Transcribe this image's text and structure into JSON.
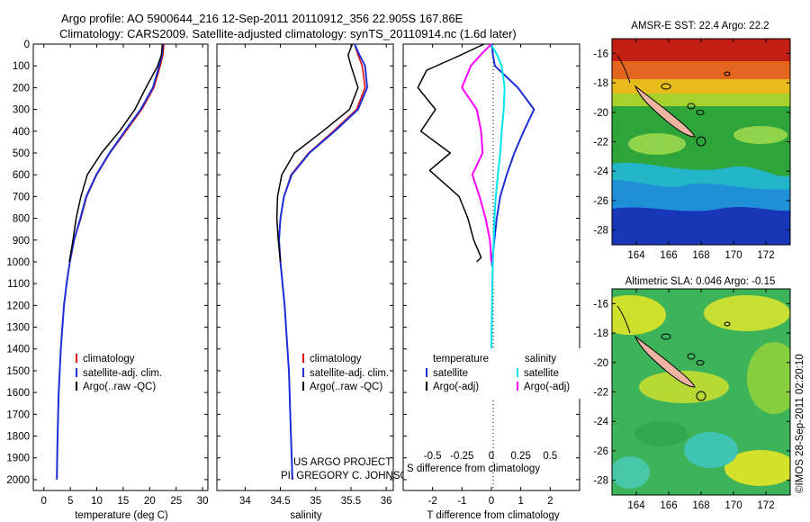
{
  "header": {
    "title_line1": "Argo profile: AO 5900644_216 12-Sep-2011 20110912_356 22.905S 167.86E",
    "title_line2": "Climatology: CARS2009. Satellite-adjusted climatology: synTS_20110914.nc (1.6d later)"
  },
  "colors": {
    "climatology": "#e00000",
    "satellite": "#1c2fd8",
    "argo": "#000000",
    "salinity_satellite": "#00e5ee",
    "salinity_argo": "#ff00ff"
  },
  "panels": {
    "temperature": {
      "xlabel": "temperature (deg C)",
      "legend": [
        "climatology",
        "satellite-adj. clim.",
        "Argo(..raw -QC)"
      ]
    },
    "salinity": {
      "xlabel": "salinity",
      "legend": [
        "climatology",
        "satellite-adj. clim.",
        "Argo(..raw -QC)"
      ],
      "credit_line1": "US ARGO PROJECT",
      "credit_line2": "PI: GREGORY C. JOHNSON"
    },
    "difference": {
      "xlabel": "T difference from climatology",
      "s_label": "S difference from climatology",
      "legend_left_title": "temperature",
      "legend_left": [
        "satellite",
        "Argo(-adj)"
      ],
      "legend_right_title": "salinity",
      "legend_right": [
        "satellite",
        "Argo(-adj)"
      ]
    }
  },
  "maps": {
    "sst": {
      "title": "AMSR-E SST: 22.4 Argo: 22.2"
    },
    "sla": {
      "title": "Altimetric SLA: 0.046 Argo: -0.15"
    },
    "lat_ticks": [
      "-16",
      "-18",
      "-20",
      "-22",
      "-24",
      "-26",
      "-28"
    ],
    "lon_ticks": [
      "164",
      "166",
      "168",
      "170",
      "172"
    ]
  },
  "timestamp": "©IMOS 28-Sep-2011 02:20:10",
  "chart_data": [
    {
      "type": "line",
      "title": "temperature profile",
      "xlabel": "temperature (deg C)",
      "ylabel": "depth",
      "xlim": [
        -2,
        31
      ],
      "ylim": [
        2050,
        0
      ],
      "xticks": [
        0,
        5,
        10,
        15,
        20,
        25,
        30
      ],
      "yticks": [
        0,
        100,
        200,
        300,
        400,
        500,
        600,
        700,
        800,
        900,
        1000,
        1100,
        1200,
        1300,
        1400,
        1500,
        1600,
        1700,
        1800,
        1900,
        2000
      ],
      "series": [
        {
          "name": "climatology",
          "color": "#e00000",
          "width": 1.5,
          "x": [
            22.7,
            22.5,
            22.0,
            20.8,
            18.5,
            15.5,
            12.5,
            10.0,
            8.1,
            7.0,
            5.7,
            4.9,
            4.3,
            3.8,
            3.5,
            3.2,
            3.0,
            2.8,
            2.7,
            2.6,
            2.5,
            2.45
          ],
          "y": [
            0,
            50,
            100,
            200,
            300,
            400,
            500,
            600,
            700,
            800,
            900,
            1000,
            1100,
            1200,
            1300,
            1400,
            1500,
            1600,
            1700,
            1800,
            1900,
            2000
          ]
        },
        {
          "name": "satellite-adj. clim.",
          "color": "#1c2fd8",
          "width": 2,
          "x": [
            22.5,
            22.3,
            21.8,
            20.6,
            18.3,
            15.3,
            12.4,
            9.9,
            8.0,
            6.9,
            5.7,
            4.9,
            4.3,
            3.8,
            3.5,
            3.2,
            3.0,
            2.8,
            2.7,
            2.6,
            2.5,
            2.45
          ],
          "y": [
            0,
            50,
            100,
            200,
            300,
            400,
            500,
            600,
            700,
            800,
            900,
            1000,
            1100,
            1200,
            1300,
            1400,
            1500,
            1600,
            1700,
            1800,
            1900,
            2000
          ]
        },
        {
          "name": "Argo(..raw -QC)",
          "color": "#000000",
          "width": 1.5,
          "x": [
            22.4,
            22.2,
            21.5,
            19.3,
            17.2,
            14.3,
            10.9,
            8.2,
            7.0,
            6.1,
            5.5,
            4.8
          ],
          "y": [
            0,
            50,
            100,
            200,
            300,
            400,
            500,
            600,
            700,
            800,
            900,
            1000
          ]
        }
      ]
    },
    {
      "type": "line",
      "title": "salinity profile",
      "xlabel": "salinity",
      "ylabel": "depth",
      "xlim": [
        33.6,
        36.1
      ],
      "ylim": [
        2050,
        0
      ],
      "xticks": [
        34,
        34.5,
        35,
        35.5,
        36
      ],
      "series": [
        {
          "name": "climatology",
          "color": "#e00000",
          "width": 1.5,
          "x": [
            35.55,
            35.6,
            35.66,
            35.7,
            35.58,
            35.25,
            34.9,
            34.65,
            34.55,
            34.5,
            34.48,
            34.5,
            34.53,
            34.56,
            34.58,
            34.6,
            34.62,
            34.63,
            34.64,
            34.65,
            34.66,
            34.67
          ],
          "y": [
            0,
            50,
            100,
            200,
            300,
            400,
            500,
            600,
            700,
            800,
            900,
            1000,
            1100,
            1200,
            1300,
            1400,
            1500,
            1600,
            1700,
            1800,
            1900,
            2000
          ]
        },
        {
          "name": "satellite-adj. clim.",
          "color": "#1c2fd8",
          "width": 2,
          "x": [
            35.55,
            35.62,
            35.7,
            35.73,
            35.6,
            35.27,
            34.91,
            34.66,
            34.55,
            34.5,
            34.48,
            34.5,
            34.53,
            34.56,
            34.58,
            34.6,
            34.62,
            34.63,
            34.64,
            34.65,
            34.66,
            34.67
          ],
          "y": [
            0,
            50,
            100,
            200,
            300,
            400,
            500,
            600,
            700,
            800,
            900,
            1000,
            1100,
            1200,
            1300,
            1400,
            1500,
            1600,
            1700,
            1800,
            1900,
            2000
          ]
        },
        {
          "name": "Argo(..raw -QC)",
          "color": "#000000",
          "width": 1.5,
          "x": [
            35.52,
            35.46,
            35.5,
            35.6,
            35.48,
            35.1,
            34.7,
            34.52,
            34.46,
            34.45,
            34.47,
            34.5
          ],
          "y": [
            0,
            50,
            100,
            200,
            300,
            400,
            500,
            600,
            700,
            800,
            900,
            1000
          ]
        }
      ]
    },
    {
      "type": "line",
      "title": "difference from climatology",
      "xlabel": "T difference from climatology",
      "s_label": "S difference from climatology",
      "ylabel": "depth",
      "xlim": [
        -3,
        3
      ],
      "ylim": [
        2050,
        0
      ],
      "xticks": [
        -2,
        -1,
        0,
        1,
        2
      ],
      "s_ticks": [
        "-0.5",
        "-0.25",
        "0",
        "0.25",
        "0.5"
      ],
      "s_tick_positions": [
        -2,
        -1,
        0,
        1,
        2
      ],
      "series": [
        {
          "name": "temperature satellite",
          "color": "#1c2fd8",
          "width": 2,
          "x": [
            0.02,
            0.05,
            0.12,
            0.9,
            1.45,
            1.1,
            0.78,
            0.52,
            0.3,
            0.18,
            0.1,
            0.06,
            0.02,
            0.02
          ],
          "y": [
            0,
            50,
            100,
            200,
            300,
            400,
            500,
            600,
            700,
            800,
            900,
            950,
            1000,
            1020
          ]
        },
        {
          "name": "temperature Argo(-adj)",
          "color": "#000000",
          "width": 1.5,
          "x": [
            -0.25,
            -1.2,
            -2.2,
            -2.5,
            -1.9,
            -2.4,
            -1.4,
            -2.1,
            -1.1,
            -0.8,
            -0.6,
            -0.35,
            -0.5
          ],
          "y": [
            0,
            60,
            120,
            200,
            300,
            400,
            500,
            580,
            700,
            800,
            900,
            980,
            1000
          ]
        },
        {
          "name": "salinity satellite",
          "color": "#00e5ee",
          "width": 2,
          "x": [
            -0.02,
            0.2,
            0.35,
            0.45,
            0.42,
            0.35,
            0.3,
            0.22,
            0.15,
            0.1,
            0.08,
            0.05,
            0.03,
            0.02,
            0.01,
            0.0
          ],
          "y": [
            0,
            50,
            100,
            200,
            300,
            400,
            500,
            600,
            700,
            800,
            900,
            1000,
            1100,
            1200,
            1300,
            1400
          ]
        },
        {
          "name": "salinity Argo(-adj)",
          "color": "#ff00ff",
          "width": 2,
          "x": [
            0.0,
            -0.3,
            -0.7,
            -1.0,
            -0.5,
            -0.35,
            -0.3,
            -0.65,
            -0.4,
            -0.2,
            -0.05,
            0.0
          ],
          "y": [
            0,
            40,
            100,
            200,
            300,
            400,
            500,
            600,
            700,
            800,
            900,
            1000
          ]
        }
      ]
    },
    {
      "type": "heatmap",
      "title": "AMSR-E SST: 22.4 Argo: 22.2",
      "xlabel": "longitude",
      "ylabel": "latitude",
      "xlim": [
        162.5,
        173.5
      ],
      "ylim": [
        -29,
        -15
      ],
      "xticks": [
        164,
        166,
        168,
        170,
        172
      ],
      "yticks": [
        -16,
        -18,
        -20,
        -22,
        -24,
        -26,
        -28
      ],
      "marker": {
        "lon": 167.86,
        "lat": -22.905
      }
    },
    {
      "type": "heatmap",
      "title": "Altimetric SLA: 0.046 Argo: -0.15",
      "xlabel": "longitude",
      "ylabel": "latitude",
      "xlim": [
        162.5,
        173.5
      ],
      "ylim": [
        -29,
        -15
      ],
      "xticks": [
        164,
        166,
        168,
        170,
        172
      ],
      "yticks": [
        -16,
        -18,
        -20,
        -22,
        -24,
        -26,
        -28
      ],
      "marker": {
        "lon": 167.86,
        "lat": -22.905
      }
    }
  ]
}
